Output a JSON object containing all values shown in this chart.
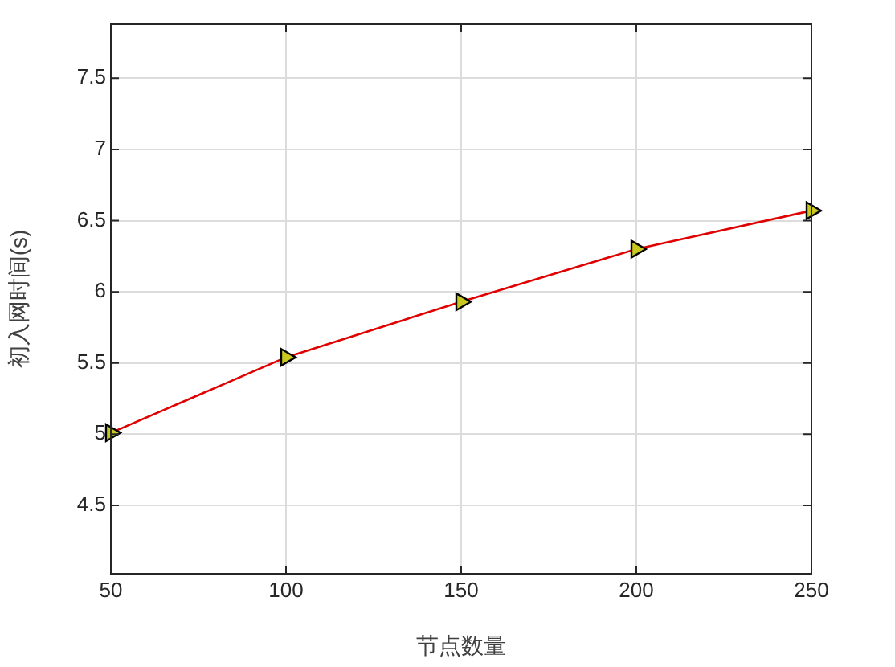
{
  "chart_data": {
    "type": "line",
    "xlabel": "节点数量",
    "ylabel": "初入网时间(s)",
    "x": [
      50,
      100,
      150,
      200,
      250
    ],
    "series": [
      {
        "color": "#e00000",
        "values": [
          5.01,
          5.54,
          5.93,
          6.3,
          6.57
        ]
      }
    ],
    "xlim": [
      50,
      250
    ],
    "xticks": [
      50,
      100,
      150,
      200,
      250
    ],
    "ylim": [
      4.02,
      7.88
    ],
    "yticks": [
      4.5,
      5,
      5.5,
      6,
      6.5,
      7,
      7.5
    ],
    "grid": true,
    "legend": false,
    "marker": "triangle",
    "line_style": "solid"
  }
}
